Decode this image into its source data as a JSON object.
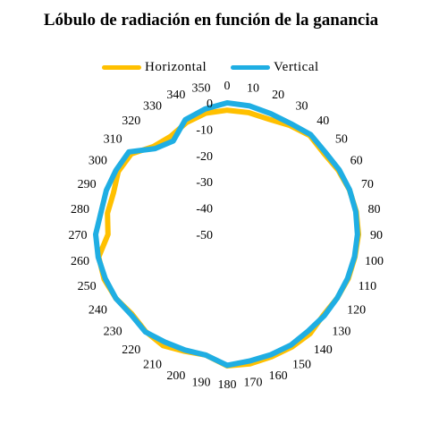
{
  "chart_data": {
    "type": "radar",
    "title": "Lóbulo de radiación en función de la ganancia",
    "angles": [
      0,
      10,
      20,
      30,
      40,
      50,
      60,
      70,
      80,
      90,
      100,
      110,
      120,
      130,
      140,
      150,
      160,
      170,
      180,
      190,
      200,
      210,
      220,
      230,
      240,
      250,
      260,
      270,
      280,
      290,
      300,
      310,
      320,
      330,
      340,
      350
    ],
    "radial_ticks": [
      0,
      -10,
      -20,
      -30,
      -40,
      -50
    ],
    "r_range": [
      -50,
      0
    ],
    "grid": false,
    "legend_position": "top",
    "series": [
      {
        "name": "Horizontal",
        "color": "#FFC000",
        "values": [
          -2.8,
          -3,
          -3.4,
          -2.2,
          -1,
          -2,
          -1.2,
          -0.5,
          -0.1,
          0,
          -0.6,
          -0.9,
          -1.6,
          -2.2,
          -0.8,
          -0.6,
          -0.5,
          0,
          0,
          -3.4,
          -2.7,
          -1.2,
          -1.8,
          -2.8,
          -1.2,
          -0.2,
          -0.4,
          -4.7,
          -3.8,
          -4,
          -2.2,
          -2.4,
          -6.4,
          -7,
          -4.8,
          -3.2
        ]
      },
      {
        "name": "Vertical",
        "color": "#1FAEE3",
        "values": [
          0,
          -0.4,
          -1.2,
          -1.4,
          -0.5,
          -1.3,
          -0.8,
          -0.4,
          -0.3,
          -0.4,
          -0.8,
          -1.2,
          -1.6,
          -1.8,
          -2,
          -1.4,
          -1.3,
          -1.1,
          -0.2,
          -3.4,
          -3.2,
          -2.7,
          -1.6,
          -2.4,
          -1.2,
          -0.7,
          -0.2,
          0,
          -1.3,
          -1.1,
          -1.2,
          -1.2,
          -7.4,
          -9,
          -3.6,
          -1.6
        ]
      }
    ]
  }
}
